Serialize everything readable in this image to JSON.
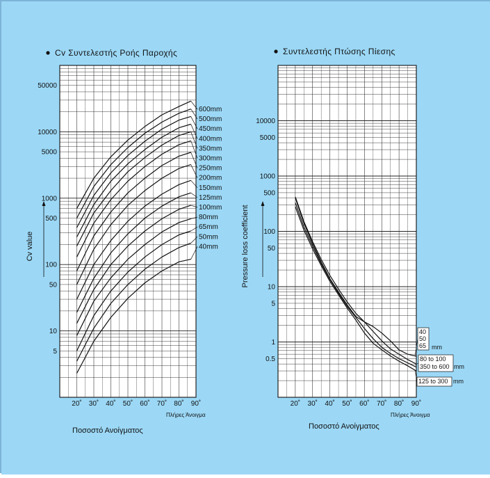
{
  "colors": {
    "background": "#9cd8f6",
    "panel": "#ffffff",
    "ink": "#111111",
    "border": "#7db3d6"
  },
  "chart_data": [
    {
      "type": "line",
      "title": "Cv Συντελεστής Ροής Παροχής",
      "ylabel": "Cv value",
      "xlabel": "Ποσοστό Ανοίγματος",
      "x_end_label": "Πλήρες Άνοιγμα",
      "y_scale": "log",
      "ylim": [
        1,
        100000
      ],
      "xlim": [
        10,
        90
      ],
      "x_ticks": [
        {
          "v": 20,
          "t": "20˚"
        },
        {
          "v": 30,
          "t": "30˚"
        },
        {
          "v": 40,
          "t": "40˚"
        },
        {
          "v": 50,
          "t": "50˚"
        },
        {
          "v": 60,
          "t": "60˚"
        },
        {
          "v": 70,
          "t": "70˚"
        },
        {
          "v": 80,
          "t": "80˚"
        },
        {
          "v": 90,
          "t": "90˚"
        }
      ],
      "y_ticks": [
        {
          "v": 5,
          "t": "5"
        },
        {
          "v": 10,
          "t": "10"
        },
        {
          "v": 50,
          "t": "50"
        },
        {
          "v": 100,
          "t": "100"
        },
        {
          "v": 500,
          "t": "500"
        },
        {
          "v": 1000,
          "t": "1000"
        },
        {
          "v": 5000,
          "t": "5000"
        },
        {
          "v": 10000,
          "t": "10000"
        },
        {
          "v": 50000,
          "t": "50000"
        }
      ],
      "grid": true,
      "x": [
        20,
        30,
        40,
        50,
        60,
        70,
        80,
        87
      ],
      "series": [
        {
          "name": "600mm",
          "values": [
            700,
            2000,
            4200,
            7500,
            12000,
            18000,
            24000,
            29000
          ]
        },
        {
          "name": "500mm",
          "values": [
            500,
            1500,
            3200,
            5800,
            9500,
            14000,
            19000,
            22000
          ]
        },
        {
          "name": "450mm",
          "values": [
            360,
            1100,
            2400,
            4400,
            7200,
            11000,
            15000,
            17000
          ]
        },
        {
          "name": "400mm",
          "values": [
            260,
            800,
            1800,
            3300,
            5400,
            8300,
            11500,
            13000
          ]
        },
        {
          "name": "350mm",
          "values": [
            190,
            600,
            1300,
            2500,
            4100,
            6300,
            8800,
            10000
          ]
        },
        {
          "name": "300mm",
          "values": [
            130,
            420,
            950,
            1800,
            3000,
            4600,
            6400,
            7300
          ]
        },
        {
          "name": "250mm",
          "values": [
            80,
            270,
            620,
            1200,
            2000,
            3100,
            4300,
            4900
          ]
        },
        {
          "name": "200mm",
          "values": [
            50,
            170,
            400,
            780,
            1300,
            2000,
            2800,
            3200
          ]
        },
        {
          "name": "150mm",
          "values": [
            30,
            100,
            230,
            450,
            760,
            1150,
            1600,
            1850
          ]
        },
        {
          "name": "125mm",
          "values": [
            19,
            62,
            150,
            290,
            500,
            760,
            1050,
            1200
          ]
        },
        {
          "name": "100mm",
          "values": [
            13,
            42,
            100,
            190,
            320,
            490,
            680,
            780
          ]
        },
        {
          "name": "80mm",
          "values": [
            8.5,
            28,
            63,
            120,
            200,
            310,
            430,
            490
          ]
        },
        {
          "name": "65mm",
          "values": [
            5,
            17,
            40,
            77,
            130,
            200,
            280,
            320
          ]
        },
        {
          "name": "50mm",
          "values": [
            3.5,
            11,
            26,
            50,
            85,
            130,
            180,
            210
          ]
        },
        {
          "name": "40mm",
          "values": [
            2.3,
            7,
            16,
            31,
            53,
            80,
            110,
            120
          ]
        }
      ]
    },
    {
      "type": "line",
      "title": "Συντελεστής Πτώσης Πίεσης",
      "ylabel": "Pressure loss coefficient",
      "xlabel": "Ποσοστό Ανοίγματος",
      "x_end_label": "Πλήρες Άνοιγμα",
      "y_scale": "log",
      "ylim": [
        0.1,
        100000
      ],
      "xlim": [
        10,
        90
      ],
      "x_ticks": [
        {
          "v": 20,
          "t": "20˚"
        },
        {
          "v": 30,
          "t": "30˚"
        },
        {
          "v": 40,
          "t": "40˚"
        },
        {
          "v": 50,
          "t": "50˚"
        },
        {
          "v": 60,
          "t": "60˚"
        },
        {
          "v": 70,
          "t": "70˚"
        },
        {
          "v": 80,
          "t": "80˚"
        },
        {
          "v": 90,
          "t": "90˚"
        }
      ],
      "y_ticks": [
        {
          "v": 0.5,
          "t": "0.5"
        },
        {
          "v": 1,
          "t": "1"
        },
        {
          "v": 5,
          "t": "5"
        },
        {
          "v": 10,
          "t": "10"
        },
        {
          "v": 50,
          "t": "50"
        },
        {
          "v": 100,
          "t": "100"
        },
        {
          "v": 500,
          "t": "500"
        },
        {
          "v": 1000,
          "t": "1000"
        },
        {
          "v": 5000,
          "t": "5000"
        },
        {
          "v": 10000,
          "t": "10000"
        }
      ],
      "grid": true,
      "series": [
        {
          "name": "40 50 65 mm",
          "x": [
            20,
            25,
            30,
            35,
            40,
            45,
            50,
            55,
            60,
            65,
            70,
            75,
            80,
            85,
            90
          ],
          "values": [
            420,
            150,
            65,
            31,
            16,
            9,
            5.3,
            3.3,
            2.3,
            1.9,
            1.45,
            1.05,
            0.72,
            0.6,
            0.55
          ]
        },
        {
          "name": "80 to 100",
          "x": [
            20,
            25,
            30,
            35,
            40,
            45,
            50,
            55,
            60,
            65,
            70,
            75,
            80,
            85,
            90
          ],
          "values": [
            400,
            140,
            60,
            28,
            14,
            8,
            4.7,
            2.9,
            2.3,
            1.55,
            1.05,
            0.75,
            0.6,
            0.48,
            0.4
          ]
        },
        {
          "name": "350 to 600",
          "x": [
            20,
            25,
            30,
            35,
            40,
            45,
            50,
            55,
            60,
            65,
            70,
            75,
            80,
            85,
            90
          ],
          "values": [
            330,
            120,
            54,
            26,
            13.5,
            7.6,
            4.4,
            2.8,
            1.75,
            1.15,
            0.8,
            0.62,
            0.5,
            0.42,
            0.35
          ]
        },
        {
          "name": "125 to 300",
          "x": [
            20,
            25,
            30,
            35,
            40,
            45,
            50,
            55,
            60,
            65,
            70,
            75,
            80,
            85,
            90
          ],
          "values": [
            280,
            105,
            48,
            24,
            12.5,
            7.1,
            4.1,
            2.5,
            1.45,
            0.95,
            0.72,
            0.56,
            0.45,
            0.37,
            0.3
          ]
        }
      ],
      "legend_boxes": [
        {
          "lines": [
            "40",
            "50",
            "65"
          ],
          "unit": "mm"
        },
        {
          "lines": [
            "80 to 100",
            "350 to 600"
          ],
          "unit": "mm"
        },
        {
          "lines": [
            "125 to 300"
          ],
          "unit": "mm"
        }
      ]
    }
  ]
}
